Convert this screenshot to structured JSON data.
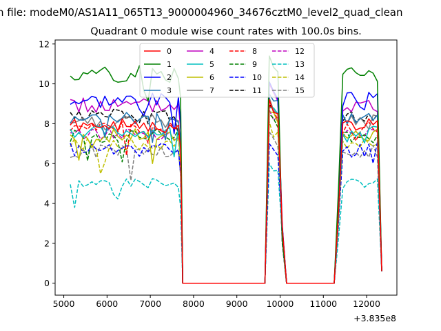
{
  "chart_data": {
    "type": "line",
    "suptitle": "n file: modeM0/AS1A11_065T13_9000004960_34676cztM0_level2_quad_clean",
    "title": "Quadrant 0 module wise count rates with 100.0s bins.",
    "xlabel": "",
    "ylabel": "",
    "x_offset_label": "+3.835e8",
    "xlim": [
      4800,
      12700
    ],
    "ylim": [
      -0.6,
      12.2
    ],
    "xticks": [
      5000,
      6000,
      7000,
      8000,
      9000,
      10000,
      11000,
      12000
    ],
    "xtick_labels": [
      "5000",
      "6000",
      "7000",
      "8000",
      "9000",
      "10000",
      "11000",
      "12000"
    ],
    "yticks": [
      0,
      2,
      4,
      6,
      8,
      10,
      12
    ],
    "ytick_labels": [
      "0",
      "2",
      "4",
      "6",
      "8",
      "10",
      "12"
    ],
    "grid": false,
    "legend": {
      "location": "top-center",
      "columns": 4
    },
    "x_segments": [
      {
        "start": 5150,
        "end": 7750,
        "step": 100
      },
      {
        "start": 7750,
        "end": 9650,
        "step": 100
      },
      {
        "start": 9650,
        "end": 10150,
        "step": 100
      },
      {
        "start": 10150,
        "end": 11250,
        "step": 100
      },
      {
        "start": 11250,
        "end": 12350,
        "step": 100
      }
    ],
    "series": [
      {
        "name": "0",
        "color": "#ff0000",
        "style": "solid",
        "level": 7.9,
        "peak": 9.2,
        "amp": 0.35,
        "seed": 1
      },
      {
        "name": "1",
        "color": "#008000",
        "style": "solid",
        "level": 10.5,
        "peak": 11.4,
        "amp": 0.45,
        "seed": 2
      },
      {
        "name": "2",
        "color": "#0000ff",
        "style": "solid",
        "level": 9.2,
        "peak": 10.1,
        "amp": 0.4,
        "seed": 3
      },
      {
        "name": "3",
        "color": "#1f77b4",
        "style": "solid",
        "level": 8.3,
        "peak": 9.5,
        "amp": 0.3,
        "seed": 4
      },
      {
        "name": "4",
        "color": "#bf00bf",
        "style": "solid",
        "level": 8.9,
        "peak": 10.0,
        "amp": 0.4,
        "seed": 5
      },
      {
        "name": "5",
        "color": "#00bfbf",
        "style": "solid",
        "level": 7.6,
        "peak": 8.8,
        "amp": 0.3,
        "seed": 6
      },
      {
        "name": "6",
        "color": "#bfbf00",
        "style": "solid",
        "level": 7.4,
        "peak": 8.6,
        "amp": 0.35,
        "seed": 7
      },
      {
        "name": "7",
        "color": "#808080",
        "style": "solid",
        "level": 8.1,
        "peak": 9.3,
        "amp": 0.4,
        "seed": 8
      },
      {
        "name": "8",
        "color": "#ff0000",
        "style": "dashed",
        "level": 7.8,
        "peak": 8.9,
        "amp": 0.3,
        "seed": 9
      },
      {
        "name": "9",
        "color": "#008000",
        "style": "dashed",
        "level": 7.4,
        "peak": 8.5,
        "amp": 0.35,
        "seed": 10
      },
      {
        "name": "10",
        "color": "#0000ff",
        "style": "dashed",
        "level": 6.7,
        "peak": 7.0,
        "amp": 0.4,
        "seed": 11
      },
      {
        "name": "11",
        "color": "#000000",
        "style": "dashed",
        "level": 8.4,
        "peak": 9.0,
        "amp": 0.35,
        "seed": 12
      },
      {
        "name": "12",
        "color": "#bf00bf",
        "style": "dashed",
        "level": 7.5,
        "peak": 8.7,
        "amp": 0.3,
        "seed": 13
      },
      {
        "name": "13",
        "color": "#00bfbf",
        "style": "dashed",
        "level": 5.0,
        "peak": 6.0,
        "amp": 0.25,
        "seed": 14
      },
      {
        "name": "14",
        "color": "#bfbf00",
        "style": "dashed",
        "level": 7.0,
        "peak": 8.1,
        "amp": 0.3,
        "seed": 15
      },
      {
        "name": "15",
        "color": "#808080",
        "style": "dashed",
        "level": 6.6,
        "peak": 7.6,
        "amp": 0.35,
        "seed": 16
      }
    ]
  }
}
